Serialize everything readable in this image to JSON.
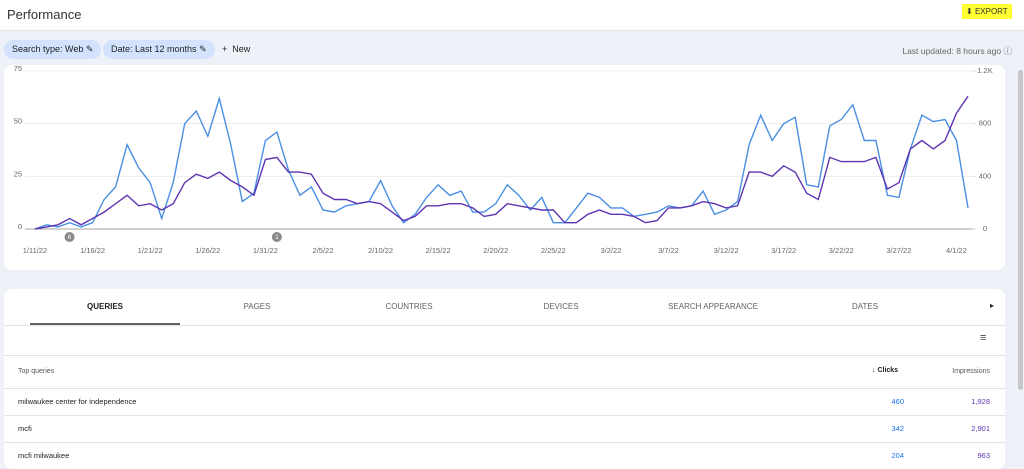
{
  "header": {
    "title": "Performance",
    "export": "EXPORT"
  },
  "filters": {
    "chips": [
      "Search type: Web",
      "Date: Last 12 months"
    ],
    "new": "New",
    "last_updated": "Last updated: 8 hours ago"
  },
  "chart_data": {
    "type": "line",
    "categories": [
      "1/11/22",
      null,
      null,
      null,
      null,
      "1/16/22",
      null,
      null,
      null,
      null,
      "1/21/22",
      null,
      null,
      null,
      null,
      "1/26/22",
      null,
      null,
      null,
      null,
      "1/31/22",
      null,
      null,
      null,
      null,
      "2/5/22",
      null,
      null,
      null,
      null,
      "2/10/22",
      null,
      null,
      null,
      null,
      "2/15/22",
      null,
      null,
      null,
      null,
      "2/20/22",
      null,
      null,
      null,
      null,
      "2/25/22",
      null,
      null,
      null,
      null,
      "3/2/22",
      null,
      null,
      null,
      null,
      "3/7/22",
      null,
      null,
      null,
      null,
      "3/12/22",
      null,
      null,
      null,
      null,
      "3/17/22",
      null,
      null,
      null,
      null,
      "3/22/22",
      null,
      null,
      null,
      null,
      "3/27/22",
      null,
      null,
      null,
      null,
      "4/1/22",
      null
    ],
    "series": [
      {
        "name": "Clicks",
        "color": "#4a8fe3",
        "values": [
          0,
          2,
          1,
          3,
          1,
          3,
          14,
          20,
          40,
          29,
          22,
          5,
          22,
          50,
          56,
          44,
          62,
          40,
          13,
          17,
          42,
          46,
          28,
          16,
          20,
          9,
          8,
          11,
          12,
          13,
          23,
          11,
          3,
          7,
          15,
          21,
          16,
          18,
          8,
          8,
          12,
          21,
          16,
          9,
          15,
          3,
          3,
          10,
          17,
          15,
          10,
          10,
          6,
          7,
          8,
          11,
          10,
          11,
          18,
          7,
          9,
          13,
          40,
          54,
          42,
          50,
          53,
          21,
          20,
          49,
          52,
          59,
          42,
          42,
          16,
          15,
          38,
          54,
          51,
          52,
          42,
          10
        ]
      },
      {
        "name": "Impressions",
        "color": "#5e35b1",
        "axis": "y2",
        "values": [
          0,
          16,
          32,
          80,
          32,
          80,
          128,
          192,
          256,
          176,
          192,
          144,
          192,
          352,
          416,
          384,
          432,
          368,
          320,
          256,
          528,
          544,
          432,
          432,
          416,
          272,
          224,
          224,
          192,
          208,
          192,
          128,
          64,
          96,
          176,
          176,
          192,
          192,
          160,
          96,
          112,
          192,
          176,
          160,
          144,
          144,
          48,
          48,
          112,
          144,
          112,
          112,
          96,
          48,
          64,
          160,
          160,
          176,
          208,
          192,
          160,
          176,
          432,
          432,
          400,
          480,
          432,
          272,
          224,
          544,
          512,
          512,
          512,
          544,
          304,
          352,
          608,
          672,
          608,
          672,
          880,
          1008
        ]
      }
    ],
    "ylim": [
      0,
      75
    ],
    "yticks": [
      0,
      25,
      50,
      75
    ],
    "y2lim": [
      0,
      1200
    ],
    "y2ticks": [
      0,
      400,
      800,
      {
        "value": 1200,
        "label": "1.2K"
      }
    ],
    "annotations": [
      "6",
      "1"
    ],
    "grid": true
  },
  "tabs": [
    "QUERIES",
    "PAGES",
    "COUNTRIES",
    "DEVICES",
    "SEARCH APPEARANCE",
    "DATES"
  ],
  "table": {
    "columns": [
      "Top queries",
      "Clicks",
      "Impressions"
    ],
    "rows": [
      [
        "milwaukee center for independence",
        "460",
        "1,928"
      ],
      [
        "mcfi",
        "342",
        "2,901"
      ],
      [
        "mcfi milwaukee",
        "204",
        "963"
      ]
    ]
  }
}
